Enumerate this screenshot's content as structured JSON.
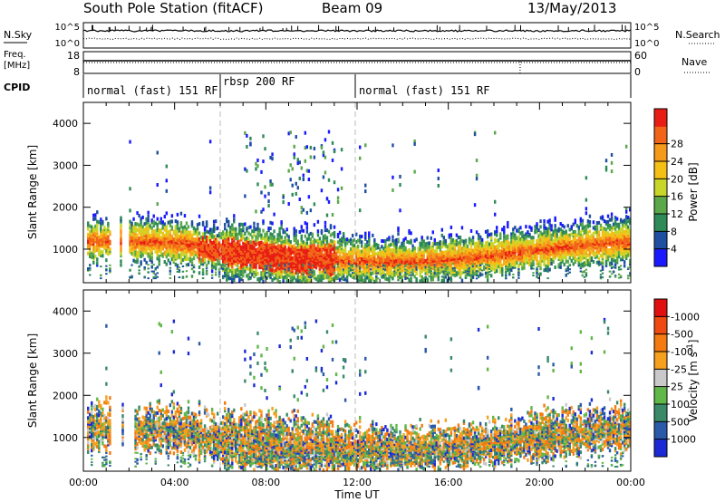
{
  "header": {
    "station": "South Pole Station (fitACF)",
    "beam": "Beam 09",
    "date": "13/May/2013"
  },
  "top_panels": {
    "nsky_label": "N.Sky",
    "nsky_ticks": [
      "10^5",
      "10^0"
    ],
    "nsearch_label": "N.Search",
    "nsearch_ticks": [
      "10^5",
      "10^0"
    ],
    "freq_label_1": "Freq.",
    "freq_label_2": "[MHz]",
    "freq_ticks": [
      "18",
      "8"
    ],
    "nave_label": "Nave",
    "nave_ticks": [
      "60",
      "0"
    ],
    "cpid_label": "CPID",
    "cpid_segments": [
      {
        "start_hr": 0,
        "end_hr": 6,
        "label": "normal (fast) 151 RF"
      },
      {
        "start_hr": 6,
        "end_hr": 12,
        "label": "rbsp 200 RF"
      },
      {
        "start_hr": 12,
        "end_hr": 24,
        "label": "normal (fast) 151 RF"
      }
    ]
  },
  "chart_data": [
    {
      "type": "heatmap",
      "name": "power",
      "ylabel": "Slant Range [km]",
      "xlim_hr": [
        0,
        24
      ],
      "ylim": [
        200,
        4500
      ],
      "yticks": [
        "1000",
        "2000",
        "3000",
        "4000"
      ],
      "colorbar": {
        "label": "Power [dB]",
        "tick_labels": [
          "4",
          "8",
          "12",
          "16",
          "20",
          "24",
          "28"
        ],
        "colors": [
          "#1a1aff",
          "#1f4fa0",
          "#2e8b57",
          "#5aa84a",
          "#c8d62a",
          "#f5c016",
          "#f59a1a",
          "#f26418",
          "#e81e14"
        ]
      }
    },
    {
      "type": "heatmap",
      "name": "velocity",
      "ylabel": "Slant Range [km]",
      "xlabel": "Time UT",
      "xlim_hr": [
        0,
        24
      ],
      "xticks": [
        "00:00",
        "04:00",
        "08:00",
        "12:00",
        "16:00",
        "20:00",
        "00:00"
      ],
      "ylim": [
        200,
        4500
      ],
      "yticks": [
        "1000",
        "2000",
        "3000",
        "4000"
      ],
      "colorbar": {
        "label": "Velocity [m s^-1]",
        "tick_labels": [
          "1000",
          "500",
          "100",
          "25",
          "-25",
          "-100",
          "-500",
          "-1000"
        ],
        "colors": [
          "#1c2ad6",
          "#2a5aa8",
          "#3a8a6a",
          "#60b848",
          "#c9c9c9",
          "#f5a01e",
          "#f47a12",
          "#ee4a12",
          "#e01010"
        ]
      }
    }
  ]
}
